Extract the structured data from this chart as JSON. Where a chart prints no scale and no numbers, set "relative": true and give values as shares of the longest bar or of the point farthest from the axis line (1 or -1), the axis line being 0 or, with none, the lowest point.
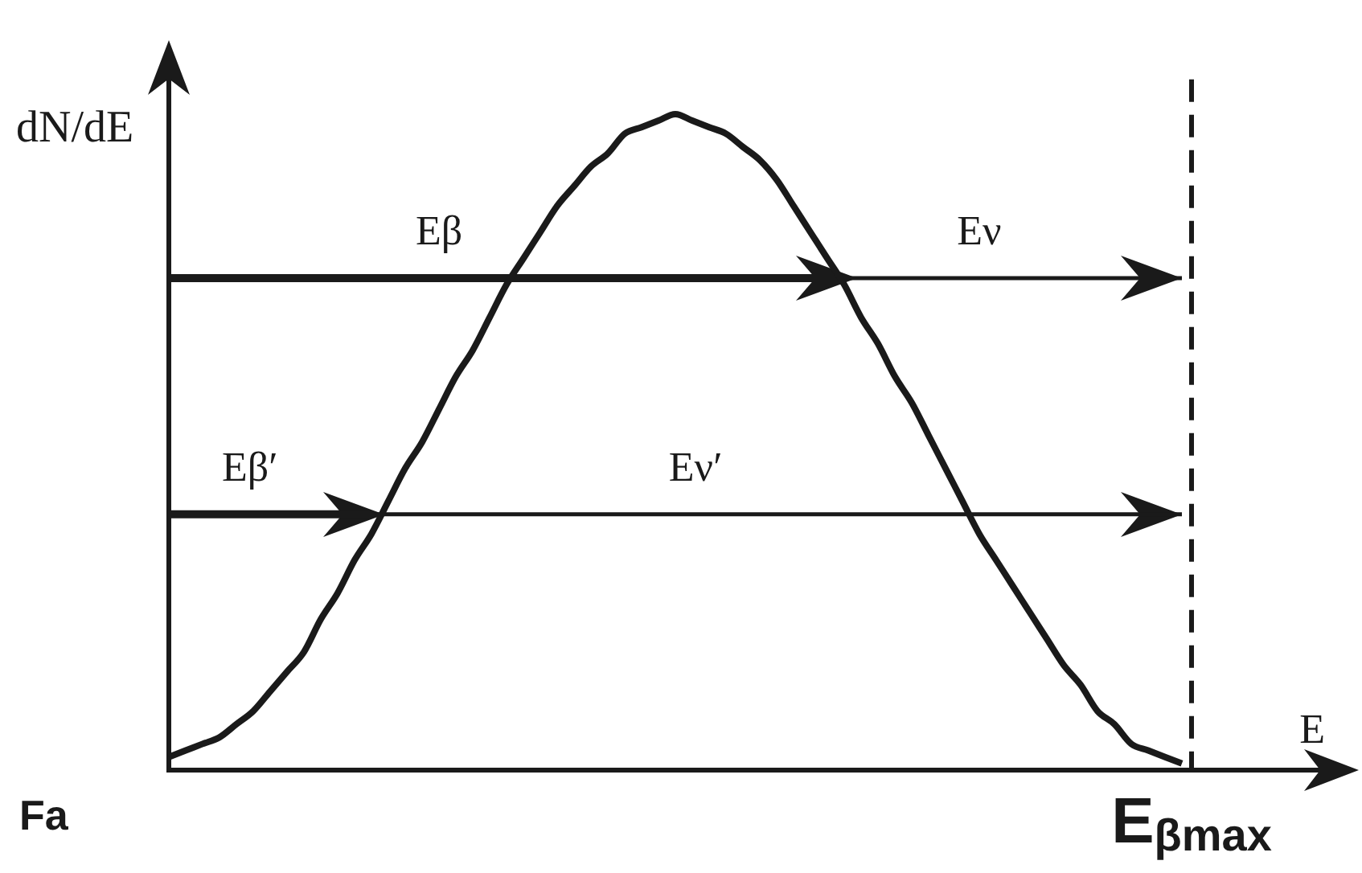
{
  "chart_data": {
    "type": "line",
    "relative": true,
    "xlabel": "E",
    "ylabel": "dN/dE",
    "categories": [
      null,
      null,
      null,
      null,
      null,
      null,
      null,
      null,
      null,
      null,
      null,
      null,
      null,
      null,
      null,
      null,
      null,
      null,
      null,
      null,
      null,
      null,
      null,
      null,
      null,
      null,
      null,
      null,
      null,
      null,
      null,
      null,
      null,
      null,
      null,
      null,
      null,
      null,
      null,
      null,
      null,
      null,
      null,
      null,
      null,
      null,
      null,
      null,
      null,
      null,
      null,
      null,
      null,
      null,
      null,
      null,
      null,
      null,
      null,
      null,
      null
    ],
    "series": [
      {
        "color": "#1a1a1a",
        "values": [
          0.02,
          0.03,
          0.04,
          0.05,
          0.07,
          0.09,
          0.12,
          0.15,
          0.18,
          0.23,
          0.27,
          0.32,
          0.36,
          0.41,
          0.46,
          0.5,
          0.55,
          0.6,
          0.64,
          0.69,
          0.74,
          0.78,
          0.82,
          0.86,
          0.89,
          0.92,
          0.94,
          0.97,
          0.98,
          0.99,
          1,
          0.99,
          0.98,
          0.97,
          0.95,
          0.93,
          0.9,
          0.86,
          0.82,
          0.78,
          0.74,
          0.69,
          0.65,
          0.6,
          0.56,
          0.51,
          0.46,
          0.41,
          0.36,
          0.32,
          0.28,
          0.24,
          0.2,
          0.16,
          0.13,
          0.09,
          0.07,
          0.04,
          0.03,
          0.02,
          0.01
        ]
      },
      {
        "name": "Eβ",
        "color": "#1a1a1a",
        "values": [
          0.75,
          0.75,
          0.75,
          0.75,
          0.75,
          0.75,
          0.75,
          0.75,
          0.75,
          0.75,
          0.75,
          0.75,
          0.75,
          0.75,
          0.75,
          0.75,
          0.75,
          0.75,
          0.75,
          0.75,
          0.75,
          0.75,
          0.75,
          0.75,
          0.75,
          0.75,
          0.75,
          0.75,
          0.75,
          0.75,
          0.75,
          0.75,
          0.75,
          0.75,
          0.75,
          0.75,
          0.75,
          0.75,
          0.75,
          0.75,
          0.75,
          null,
          null,
          null,
          null,
          null,
          null,
          null,
          null,
          null,
          null,
          null,
          null,
          null,
          null,
          null,
          null,
          null,
          null,
          null,
          null
        ]
      },
      {
        "name": "Eν",
        "color": "#1a1a1a",
        "values": [
          null,
          null,
          null,
          null,
          null,
          null,
          null,
          null,
          null,
          null,
          null,
          null,
          null,
          null,
          null,
          null,
          null,
          null,
          null,
          null,
          null,
          null,
          null,
          null,
          null,
          null,
          null,
          null,
          null,
          null,
          null,
          null,
          null,
          null,
          null,
          null,
          null,
          null,
          null,
          null,
          0.75,
          0.75,
          0.75,
          0.75,
          0.75,
          0.75,
          0.75,
          0.75,
          0.75,
          0.75,
          0.75,
          0.75,
          0.75,
          0.75,
          0.75,
          0.75,
          0.75,
          0.75,
          0.75,
          0.75,
          0.75
        ]
      },
      {
        "name": "Eβ′",
        "color": "#1a1a1a",
        "values": [
          0.39,
          0.39,
          0.39,
          0.39,
          0.39,
          0.39,
          0.39,
          0.39,
          0.39,
          0.39,
          0.39,
          0.39,
          0.39,
          null,
          null,
          null,
          null,
          null,
          null,
          null,
          null,
          null,
          null,
          null,
          null,
          null,
          null,
          null,
          null,
          null,
          null,
          null,
          null,
          null,
          null,
          null,
          null,
          null,
          null,
          null,
          null,
          null,
          null,
          null,
          null,
          null,
          null,
          null,
          null,
          null,
          null,
          null,
          null,
          null,
          null,
          null,
          null,
          null,
          null,
          null,
          null
        ]
      },
      {
        "name": "Eν′",
        "color": "#1a1a1a",
        "values": [
          null,
          null,
          null,
          null,
          null,
          null,
          null,
          null,
          null,
          null,
          null,
          null,
          0.39,
          0.39,
          0.39,
          0.39,
          0.39,
          0.39,
          0.39,
          0.39,
          0.39,
          0.39,
          0.39,
          0.39,
          0.39,
          0.39,
          0.39,
          0.39,
          0.39,
          0.39,
          0.39,
          0.39,
          0.39,
          0.39,
          0.39,
          0.39,
          0.39,
          0.39,
          0.39,
          0.39,
          0.39,
          0.39,
          0.39,
          0.39,
          0.39,
          0.39,
          0.39,
          0.39,
          0.39,
          0.39,
          0.39,
          0.39,
          0.39,
          0.39,
          0.39,
          0.39,
          0.39,
          0.39,
          0.39,
          0.39,
          0.39
        ]
      }
    ],
    "annotations": [
      "E$_{βmax}$",
      "Fa"
    ]
  }
}
